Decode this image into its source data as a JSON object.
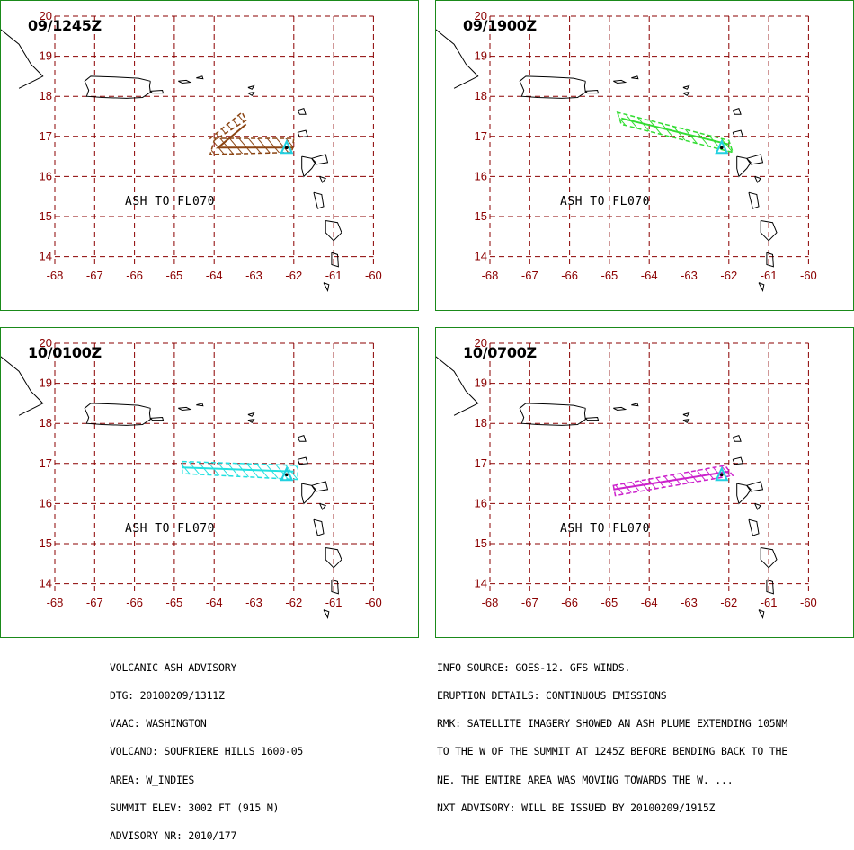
{
  "map": {
    "lon_ticks": [
      "-68",
      "-67",
      "-66",
      "-65",
      "-64",
      "-63",
      "-62",
      "-61",
      "-60"
    ],
    "lat_ticks": [
      "20",
      "19",
      "18",
      "17",
      "16",
      "15",
      "14"
    ],
    "grid_color": "#8b0000",
    "coast_color": "#000000"
  },
  "panels": [
    {
      "title": "09/1245Z",
      "ash_label": "ASH TO FL070",
      "plume_color": "#8b4513"
    },
    {
      "title": "09/1900Z",
      "ash_label": "ASH TO FL070",
      "plume_color": "#33dd33"
    },
    {
      "title": "10/0100Z",
      "ash_label": "ASH TO FL070",
      "plume_color": "#22e0e0"
    },
    {
      "title": "10/0700Z",
      "ash_label": "ASH TO FL070",
      "plume_color": "#cc22cc"
    }
  ],
  "volcano_marker_color": "#22d0e0",
  "advisory_left": [
    "VOLCANIC ASH ADVISORY",
    "DTG: 20100209/1311Z",
    "VAAC: WASHINGTON",
    "VOLCANO: SOUFRIERE HILLS 1600-05",
    "AREA: W_INDIES",
    "SUMMIT ELEV: 3002 FT (915 M)",
    "ADVISORY NR: 2010/177"
  ],
  "advisory_right": [
    "INFO SOURCE: GOES-12. GFS WINDS.",
    "ERUPTION DETAILS: CONTINUOUS EMISSIONS",
    "RMK: SATELLITE IMAGERY SHOWED AN ASH PLUME EXTENDING 105NM",
    "TO THE W OF THE SUMMIT AT 1245Z BEFORE BENDING BACK TO THE",
    "NE. THE ENTIRE AREA WAS MOVING TOWARDS THE W. ...",
    "NXT ADVISORY: WILL BE ISSUED BY 20100209/1915Z"
  ]
}
